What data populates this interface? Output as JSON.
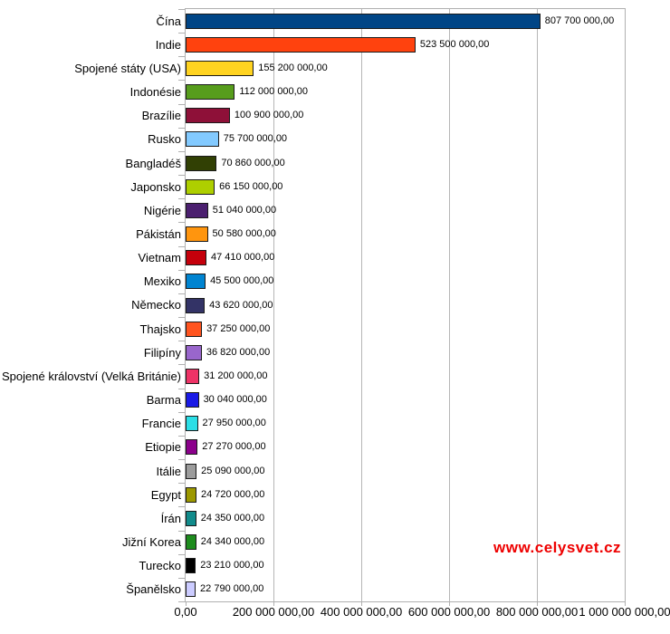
{
  "watermark": {
    "text": "www.celysvet.cz",
    "color": "#ee0000"
  },
  "chart_data": {
    "type": "bar",
    "orientation": "horizontal",
    "title": "",
    "xlabel": "",
    "ylabel": "",
    "xlim": [
      0,
      1000000000
    ],
    "grid": "vertical major gridlines every 200000000",
    "legend": "none",
    "plot_border_color": "#b0b0b0",
    "bar_border_color": "#1a1a1a",
    "categories": [
      "Čína",
      "Indie",
      "Spojené státy (USA)",
      "Indonésie",
      "Brazílie",
      "Rusko",
      "Bangladéš",
      "Japonsko",
      "Nigérie",
      "Pákistán",
      "Vietnam",
      "Mexiko",
      "Německo",
      "Thajsko",
      "Filipíny",
      "Spojené království (Velká Británie)",
      "Barma",
      "Francie",
      "Etiopie",
      "Itálie",
      "Egypt",
      "Írán",
      "Jižní Korea",
      "Turecko",
      "Španělsko"
    ],
    "values": [
      807700000,
      523500000,
      155200000,
      112000000,
      100900000,
      75700000,
      70860000,
      66150000,
      51040000,
      50580000,
      47410000,
      45500000,
      43620000,
      37250000,
      36820000,
      31200000,
      30040000,
      27950000,
      27270000,
      25090000,
      24720000,
      24350000,
      24340000,
      23210000,
      22790000
    ],
    "value_labels": [
      "807 700 000,00",
      "523 500 000,00",
      "155 200 000,00",
      "112 000 000,00",
      "100 900 000,00",
      "75 700 000,00",
      "70 860 000,00",
      "66 150 000,00",
      "51 040 000,00",
      "50 580 000,00",
      "47 410 000,00",
      "45 500 000,00",
      "43 620 000,00",
      "37 250 000,00",
      "36 820 000,00",
      "31 200 000,00",
      "30 040 000,00",
      "27 950 000,00",
      "27 270 000,00",
      "25 090 000,00",
      "24 720 000,00",
      "24 350 000,00",
      "24 340 000,00",
      "23 210 000,00",
      "22 790 000,00"
    ],
    "bar_colors": [
      "#004586",
      "#FF420E",
      "#FFD320",
      "#579D1C",
      "#8E1038",
      "#83CAFF",
      "#314004",
      "#AECF00",
      "#4B1F6F",
      "#FF950E",
      "#C5000B",
      "#0084D1",
      "#333366",
      "#FF541F",
      "#9966CC",
      "#EE3366",
      "#1A1AE6",
      "#2BDEE6",
      "#8B008B",
      "#9C9C9C",
      "#9C9800",
      "#118B8B",
      "#1E8C1E",
      "#000000",
      "#CCCCFF"
    ],
    "x_ticks": [
      {
        "value": 0,
        "label": "0,00"
      },
      {
        "value": 200000000,
        "label": "200 000 000,00"
      },
      {
        "value": 400000000,
        "label": "400 000 000,00"
      },
      {
        "value": 600000000,
        "label": "600 000 000,00"
      },
      {
        "value": 800000000,
        "label": "800 000 000,00"
      },
      {
        "value": 1000000000,
        "label": "1 000 000 000,00"
      }
    ]
  }
}
